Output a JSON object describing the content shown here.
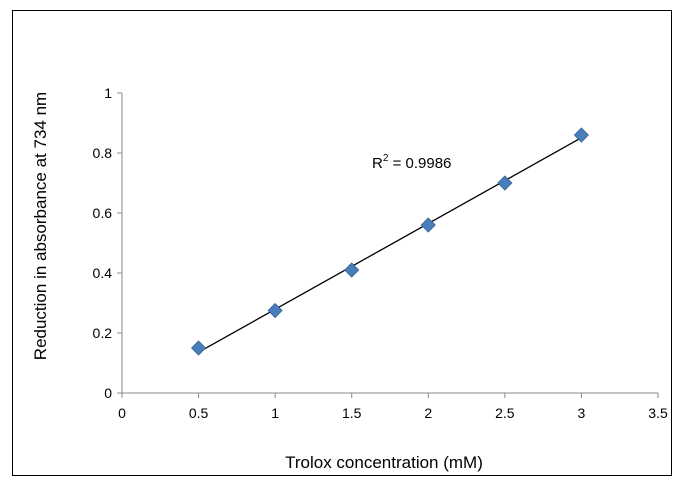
{
  "chart_data": {
    "type": "scatter",
    "xlabel": "Trolox concentration (mM)",
    "ylabel": "Reduction in absorbance at 734 nm",
    "xlim": [
      0,
      3.5
    ],
    "ylim": [
      0,
      1
    ],
    "x_ticks": [
      "0",
      "0.5",
      "1",
      "1.5",
      "2",
      "2.5",
      "3",
      "3.5"
    ],
    "y_ticks": [
      "0",
      "0.2",
      "0.4",
      "0.6",
      "0.8",
      "1"
    ],
    "grid": false,
    "legend": "none",
    "marker_color": "#4a7ebb",
    "series": [
      {
        "x": [
          0.5,
          1.0,
          1.5,
          2.0,
          2.5,
          3.0
        ],
        "y": [
          0.15,
          0.275,
          0.41,
          0.56,
          0.7,
          0.86
        ]
      }
    ],
    "trendline": {
      "type": "linear",
      "x_range": [
        0.5,
        3.0
      ],
      "y_range": [
        0.136,
        0.851
      ]
    },
    "annotation": {
      "r_squared_label": "R",
      "r_squared_sup": "2",
      "r_squared_value": " = 0.9986"
    }
  }
}
